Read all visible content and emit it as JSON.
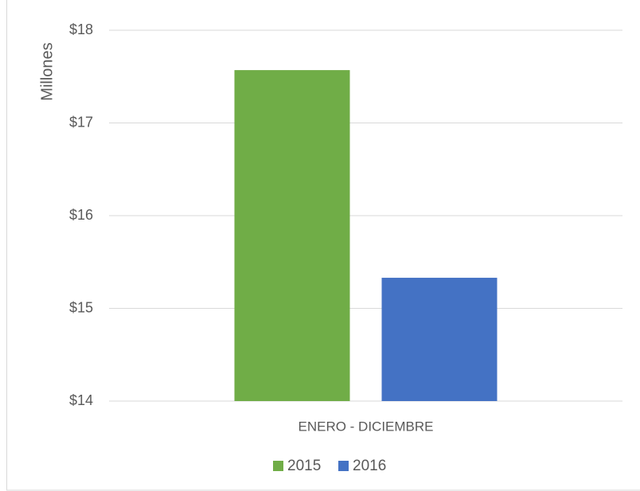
{
  "chart_data": {
    "type": "bar",
    "y_label": "Millones",
    "categories": [
      "ENERO - DICIEMBRE"
    ],
    "series": [
      {
        "name": "2015",
        "color": "#70ad47",
        "values": [
          17.57
        ]
      },
      {
        "name": "2016",
        "color": "#4472c4",
        "values": [
          15.33
        ]
      }
    ],
    "ylim": [
      14,
      18
    ],
    "yticks": [
      {
        "value": 14,
        "label": "$14"
      },
      {
        "value": 15,
        "label": "$15"
      },
      {
        "value": 16,
        "label": "$16"
      },
      {
        "value": 17,
        "label": "$17"
      },
      {
        "value": 18,
        "label": "$18"
      }
    ],
    "grid": true,
    "legend": "bottom"
  }
}
